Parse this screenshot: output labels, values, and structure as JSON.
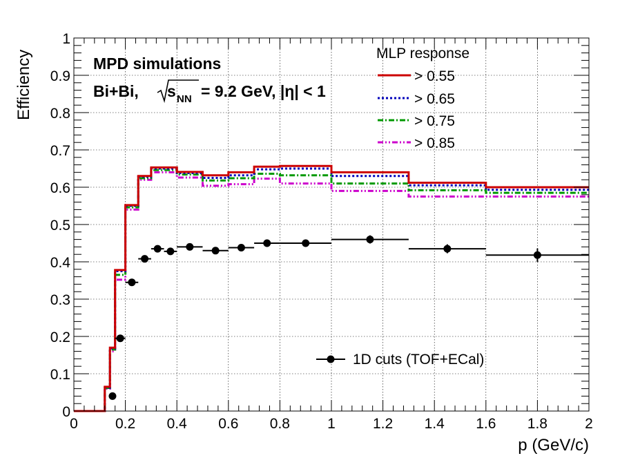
{
  "chart_data": {
    "type": "line",
    "title": "",
    "xlabel": "p (GeV/c)",
    "ylabel": "Efficiency",
    "xlim": [
      0,
      2
    ],
    "ylim": [
      0,
      1
    ],
    "grid": true,
    "x_ticks": [
      "0",
      "0.2",
      "0.4",
      "0.6",
      "0.8",
      "1",
      "1.2",
      "1.4",
      "1.6",
      "1.8",
      "2"
    ],
    "y_ticks": [
      "0",
      "0.1",
      "0.2",
      "0.3",
      "0.4",
      "0.5",
      "0.6",
      "0.7",
      "0.8",
      "0.9",
      "1"
    ],
    "annotations": {
      "line1": "MPD simulations",
      "line2_prefix": "Bi+Bi,",
      "line2_s": "s",
      "line2_sub": "NN",
      "line2_suffix": "= 9.2 GeV, |η| < 1"
    },
    "legend_mlp": {
      "title": "MLP response",
      "position": "top-right",
      "entries": [
        "> 0.55",
        "> 0.65",
        "> 0.75",
        "> 0.85"
      ]
    },
    "legend_cuts": {
      "label": "1D cuts (TOF+ECal)",
      "position": "bottom-right"
    },
    "bin_edges": [
      0,
      0.1,
      0.12,
      0.14,
      0.16,
      0.2,
      0.25,
      0.3,
      0.4,
      0.5,
      0.6,
      0.7,
      0.8,
      1.0,
      1.3,
      1.6,
      2.0
    ],
    "series": [
      {
        "name": "> 0.55",
        "color": "#cc0000",
        "style": "solid",
        "values": [
          0,
          0,
          0.065,
          0.17,
          0.378,
          0.552,
          0.63,
          0.653,
          0.641,
          0.632,
          0.64,
          0.655,
          0.657,
          0.64,
          0.612,
          0.6
        ]
      },
      {
        "name": "> 0.65",
        "color": "#0000bb",
        "style": "dotted",
        "values": [
          0,
          0,
          0.063,
          0.168,
          0.375,
          0.55,
          0.628,
          0.65,
          0.638,
          0.625,
          0.632,
          0.648,
          0.65,
          0.63,
          0.605,
          0.593
        ]
      },
      {
        "name": "> 0.75",
        "color": "#009900",
        "style": "dashdot",
        "values": [
          0,
          0,
          0.062,
          0.165,
          0.365,
          0.546,
          0.624,
          0.646,
          0.634,
          0.618,
          0.624,
          0.636,
          0.632,
          0.61,
          0.592,
          0.585
        ]
      },
      {
        "name": "> 0.85",
        "color": "#cc00cc",
        "style": "dashdotdot",
        "values": [
          0,
          0,
          0.06,
          0.16,
          0.352,
          0.54,
          0.62,
          0.64,
          0.626,
          0.604,
          0.608,
          0.623,
          0.61,
          0.59,
          0.575,
          0.575
        ]
      }
    ],
    "points": {
      "name": "1D cuts (TOF+ECal)",
      "color": "#000000",
      "data": [
        {
          "x": 0.15,
          "xerr": 0.01,
          "y": 0.04,
          "yerr": 0.005
        },
        {
          "x": 0.18,
          "xerr": 0.02,
          "y": 0.195,
          "yerr": 0.006
        },
        {
          "x": 0.225,
          "xerr": 0.025,
          "y": 0.345,
          "yerr": 0.007
        },
        {
          "x": 0.275,
          "xerr": 0.025,
          "y": 0.408,
          "yerr": 0.007
        },
        {
          "x": 0.325,
          "xerr": 0.025,
          "y": 0.435,
          "yerr": 0.008
        },
        {
          "x": 0.375,
          "xerr": 0.025,
          "y": 0.428,
          "yerr": 0.008
        },
        {
          "x": 0.45,
          "xerr": 0.05,
          "y": 0.44,
          "yerr": 0.008
        },
        {
          "x": 0.55,
          "xerr": 0.05,
          "y": 0.43,
          "yerr": 0.009
        },
        {
          "x": 0.65,
          "xerr": 0.05,
          "y": 0.438,
          "yerr": 0.009
        },
        {
          "x": 0.75,
          "xerr": 0.05,
          "y": 0.45,
          "yerr": 0.01
        },
        {
          "x": 0.9,
          "xerr": 0.1,
          "y": 0.45,
          "yerr": 0.01
        },
        {
          "x": 1.15,
          "xerr": 0.15,
          "y": 0.46,
          "yerr": 0.011
        },
        {
          "x": 1.45,
          "xerr": 0.15,
          "y": 0.435,
          "yerr": 0.012
        },
        {
          "x": 1.8,
          "xerr": 0.2,
          "y": 0.418,
          "yerr": 0.018
        }
      ]
    }
  }
}
